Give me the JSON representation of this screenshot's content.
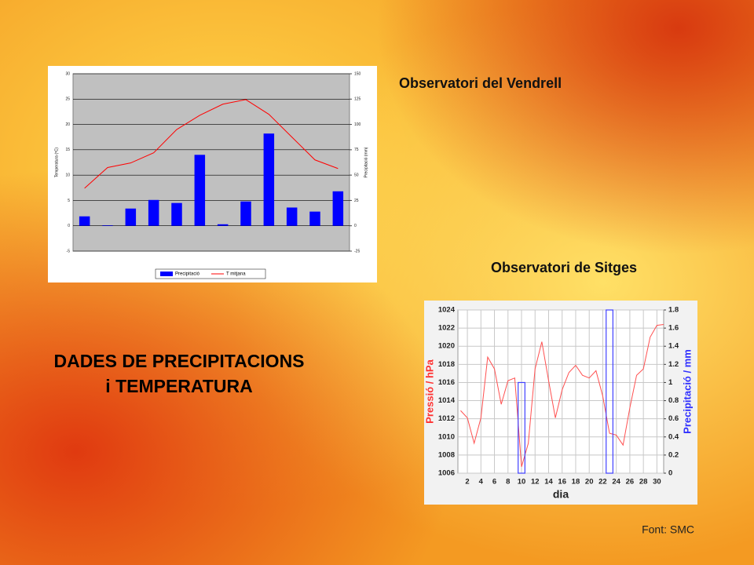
{
  "slide": {
    "title_line1": "DADES DE PRECIPITACIONS",
    "title_line2": "i TEMPERATURA",
    "caption_vendrell": "Observatori del Vendrell",
    "caption_sitges": "Observatori de Sitges",
    "source": "Font: SMC"
  },
  "chart_data": [
    {
      "type": "bar",
      "categories": [
        null,
        null,
        null,
        null,
        null,
        null,
        null,
        null,
        null,
        null,
        null,
        null
      ],
      "ylabel": "Temperatura (ºC)",
      "y2label": "Precipitació (mm)",
      "ylim": [
        -5,
        30
      ],
      "yticks": [
        -5,
        0,
        5,
        10,
        15,
        20,
        25,
        30
      ],
      "y2lim": [
        -25,
        150
      ],
      "y2ticks": [
        -25,
        0,
        25,
        50,
        75,
        100,
        125,
        150
      ],
      "grid": true,
      "series": [
        {
          "name": "Precipitació",
          "type": "bar",
          "axis": "y2",
          "color": "#0000ff",
          "values": [
            9.3,
            0.5,
            17,
            25.5,
            22.5,
            70,
            1.5,
            24,
            91,
            18,
            14,
            34
          ]
        },
        {
          "name": "T mitjana",
          "type": "line",
          "color": "#ff0000",
          "values": [
            7.4,
            11.5,
            12.4,
            14.4,
            19,
            21.8,
            24,
            24.9,
            22,
            17.5,
            13,
            11.3
          ]
        }
      ]
    },
    {
      "type": "line",
      "xlabel": "dia",
      "ylabel": "Pressió / hPa",
      "y2label": "Precipitació / mm",
      "x": [
        1,
        2,
        3,
        4,
        5,
        6,
        7,
        8,
        9,
        10,
        11,
        12,
        13,
        14,
        15,
        16,
        17,
        18,
        19,
        20,
        21,
        22,
        23,
        24,
        25,
        26,
        27,
        28,
        29,
        30,
        31
      ],
      "xlim": [
        0.6,
        31
      ],
      "xticks": [
        2,
        4,
        6,
        8,
        10,
        12,
        14,
        16,
        18,
        20,
        22,
        24,
        26,
        28,
        30
      ],
      "ylim": [
        1006,
        1024
      ],
      "yticks": [
        1006,
        1008,
        1010,
        1012,
        1014,
        1016,
        1018,
        1020,
        1022,
        1024
      ],
      "y2lim": [
        0,
        1.8
      ],
      "y2ticks": [
        0,
        0.2,
        0.4,
        0.6,
        0.8,
        1,
        1.2,
        1.4,
        1.6,
        1.8
      ],
      "grid": true,
      "series": [
        {
          "type": "line",
          "color": "#ff5050",
          "values": [
            1012.9,
            1012.1,
            1009.3,
            1012.1,
            1018.8,
            1017.5,
            1013.6,
            1016.2,
            1016.5,
            1006.7,
            1009.3,
            1017.5,
            1020.5,
            1016.2,
            1012.1,
            1015.2,
            1017.1,
            1017.9,
            1016.8,
            1016.5,
            1017.3,
            1014.5,
            1010.4,
            1010.2,
            1009.1,
            1013.2,
            1016.8,
            1017.5,
            1021.0,
            1022.3,
            1022.4
          ]
        },
        {
          "type": "bar",
          "axis": "y2",
          "color": "#4040ff",
          "x": [
            10,
            23
          ],
          "values": [
            1,
            1.8
          ]
        }
      ]
    }
  ]
}
